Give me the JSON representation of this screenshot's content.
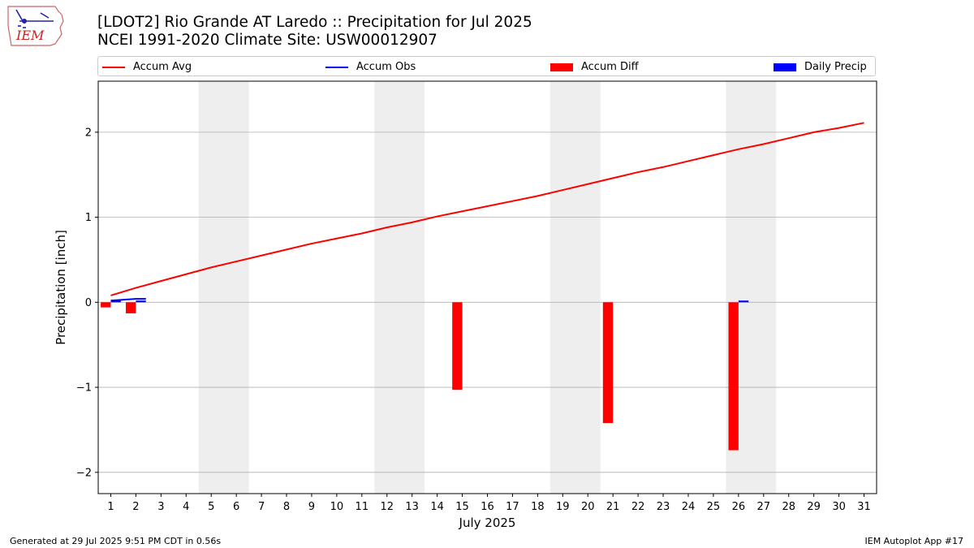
{
  "header": {
    "title_line1": "[LDOT2] Rio Grande  AT Laredo :: Precipitation for Jul 2025",
    "title_line2": "NCEI 1991-2020 Climate Site: USW00012907",
    "logo_text": "IEM"
  },
  "legend": {
    "accum_avg": "Accum Avg",
    "accum_obs": "Accum Obs",
    "accum_diff": "Accum Diff",
    "daily_precip": "Daily Precip"
  },
  "colors": {
    "avg": "#ff0000",
    "obs": "#0000ff",
    "diff": "#ff0000",
    "daily": "#0000ff",
    "weekend": "#eeeeee",
    "grid": "#b0b0b0"
  },
  "chart_data": {
    "type": "line",
    "xlabel": "July 2025",
    "ylabel": "Precipitation [inch]",
    "xlim": [
      0.5,
      31.5
    ],
    "ylim": [
      -2.25,
      2.6
    ],
    "yticks": [
      -2,
      -1,
      0,
      1,
      2
    ],
    "ytick_labels": [
      "−2",
      "−1",
      "0",
      "1",
      "2"
    ],
    "x": [
      1,
      2,
      3,
      4,
      5,
      6,
      7,
      8,
      9,
      10,
      11,
      12,
      13,
      14,
      15,
      16,
      17,
      18,
      19,
      20,
      21,
      22,
      23,
      24,
      25,
      26,
      27,
      28,
      29,
      30,
      31
    ],
    "weekend_spans": [
      [
        4.5,
        6.5
      ],
      [
        11.5,
        13.5
      ],
      [
        18.5,
        20.5
      ],
      [
        25.5,
        27.5
      ]
    ],
    "grid": "horizontal",
    "series": [
      {
        "name": "Accum Avg",
        "type": "line",
        "values": [
          0.08,
          0.17,
          0.25,
          0.33,
          0.41,
          0.48,
          0.55,
          0.62,
          0.69,
          0.75,
          0.81,
          0.88,
          0.94,
          1.01,
          1.07,
          1.13,
          1.19,
          1.25,
          1.32,
          1.39,
          1.46,
          1.53,
          1.59,
          1.66,
          1.73,
          1.8,
          1.86,
          1.93,
          2.0,
          2.05,
          2.11
        ]
      },
      {
        "name": "Accum Obs",
        "type": "line",
        "x": [
          1,
          2,
          2.4
        ],
        "values": [
          0.02,
          0.04,
          0.04
        ]
      },
      {
        "name": "Accum Diff",
        "type": "bar",
        "offset": -0.2,
        "x": [
          1,
          2,
          15,
          21,
          26
        ],
        "values": [
          -0.06,
          -0.13,
          -1.03,
          -1.42,
          -1.74
        ]
      },
      {
        "name": "Daily Precip",
        "type": "bar",
        "offset": 0.2,
        "x": [
          1,
          2,
          26
        ],
        "values": [
          0.02,
          0.02,
          0.02
        ]
      }
    ]
  },
  "footer": {
    "generated": "Generated at 29 Jul 2025 9:51 PM CDT in 0.56s",
    "app": "IEM Autoplot App #17"
  }
}
